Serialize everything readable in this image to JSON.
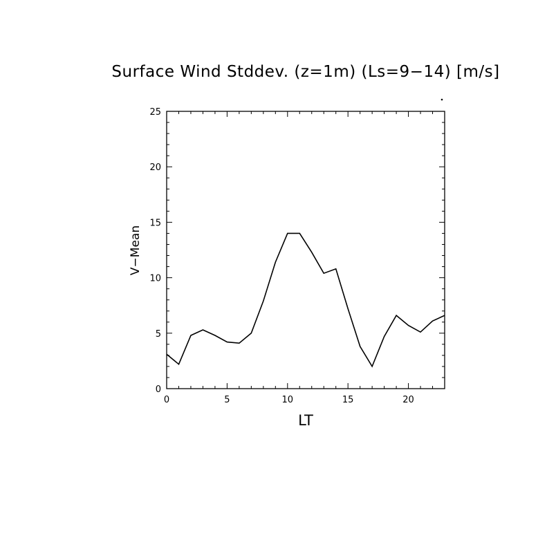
{
  "chart_data": {
    "type": "line",
    "title": "Surface Wind Stddev. (z=1m) (Ls=9−14) [m/s]",
    "xlabel": "LT",
    "ylabel": "V−Mean",
    "xlim": [
      0,
      23
    ],
    "ylim": [
      0,
      25
    ],
    "x_ticks": [
      0,
      5,
      10,
      15,
      20
    ],
    "y_ticks": [
      0,
      5,
      10,
      15,
      20,
      25
    ],
    "grid": false,
    "legend": "none",
    "line_color": "#000000",
    "series": [
      {
        "x": [
          0,
          1,
          2,
          3,
          4,
          5,
          6,
          7,
          8,
          9,
          10,
          11,
          12,
          13,
          14,
          15,
          16,
          17,
          18,
          19,
          20,
          21,
          22,
          23
        ],
        "values": [
          3.1,
          2.2,
          4.8,
          5.3,
          4.8,
          4.2,
          4.1,
          5.0,
          7.9,
          11.4,
          14.0,
          14.0,
          12.3,
          10.4,
          10.8,
          7.2,
          3.8,
          2.0,
          4.7,
          6.6,
          5.7,
          5.1,
          6.1,
          6.6
        ]
      }
    ]
  }
}
